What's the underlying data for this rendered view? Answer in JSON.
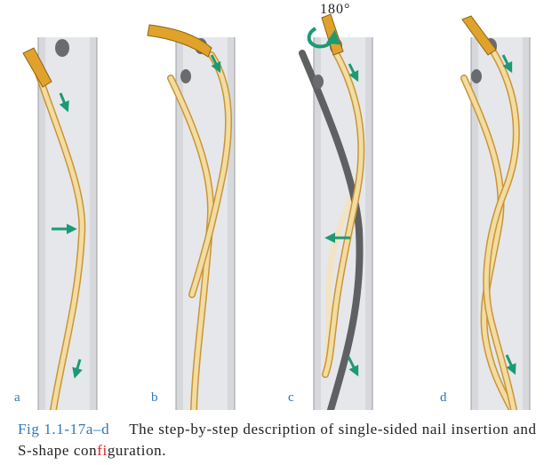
{
  "panels": [
    {
      "id": "a",
      "label": "a"
    },
    {
      "id": "b",
      "label": "b"
    },
    {
      "id": "c",
      "label": "c"
    },
    {
      "id": "d",
      "label": "d"
    }
  ],
  "rotation_label": "180°",
  "caption": {
    "figure_number": "Fig 1.1-17a–d",
    "text_before": "The step-by-step description of single-sided nail insertion and S-shape con",
    "highlight": "fi",
    "text_after": "guration."
  },
  "colors": {
    "bone": "#d7d8dc",
    "canal": "#e6e7ea",
    "nail_fill": "#f3dca0",
    "nail_edge": "#c8953a",
    "nail_tip": "#e0a22a",
    "grey_nail": "#5f6062",
    "entry_hole": "#6a6b6e",
    "arrow": "#1b9a73",
    "label": "#2e78b7",
    "highlight": "#d81e1e"
  },
  "icons": [
    "rotation-arrow-icon",
    "direction-arrow-icon"
  ]
}
